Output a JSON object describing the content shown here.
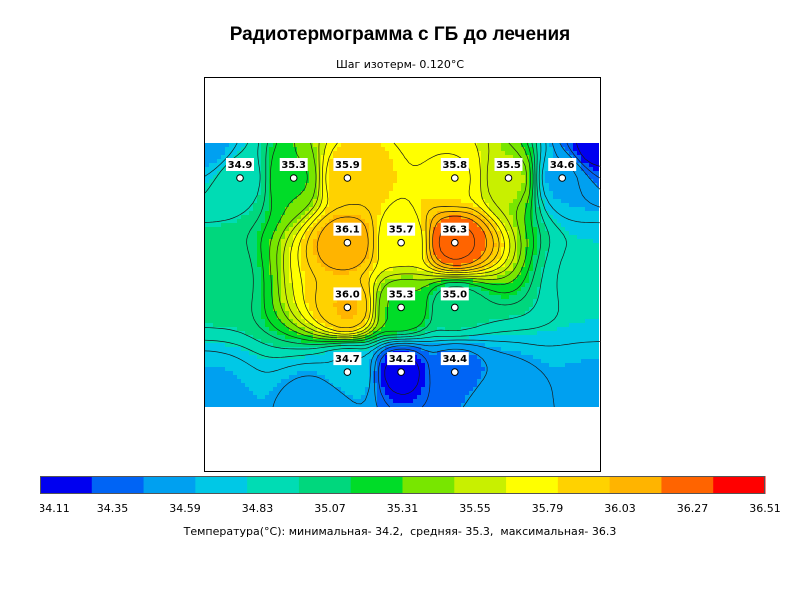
{
  "title": "Радиотермограмма с ГБ до лечения",
  "subtitle": "Шаг изотерм- 0.120°С",
  "footer": {
    "label": "Температура(°С): минимальная-",
    "min": "34.2",
    "mean_label": "средняя-",
    "mean": "35.3",
    "max_label": "максимальная-",
    "max": "36.3"
  },
  "chart_data": {
    "type": "heatmap",
    "title": "Радиотермограмма с ГБ до лечения",
    "subtitle": "Шаг изотерм- 0.120°С",
    "points": [
      {
        "col": 1,
        "row": 1,
        "value": 34.9,
        "label": "34.9"
      },
      {
        "col": 2,
        "row": 1,
        "value": 35.3,
        "label": "35.3"
      },
      {
        "col": 3,
        "row": 1,
        "value": 35.9,
        "label": "35.9"
      },
      {
        "col": 5,
        "row": 1,
        "value": 35.8,
        "label": "35.8"
      },
      {
        "col": 6,
        "row": 1,
        "value": 35.5,
        "label": "35.5"
      },
      {
        "col": 7,
        "row": 1,
        "value": 34.6,
        "label": "34.6"
      },
      {
        "col": 3,
        "row": 2,
        "value": 36.1,
        "label": "36.1"
      },
      {
        "col": 4,
        "row": 2,
        "value": 35.7,
        "label": "35.7"
      },
      {
        "col": 5,
        "row": 2,
        "value": 36.3,
        "label": "36.3"
      },
      {
        "col": 3,
        "row": 3,
        "value": 36.0,
        "label": "36.0"
      },
      {
        "col": 4,
        "row": 3,
        "value": 35.3,
        "label": "35.3"
      },
      {
        "col": 5,
        "row": 3,
        "value": 35.0,
        "label": "35.0"
      },
      {
        "col": 3,
        "row": 4,
        "value": 34.7,
        "label": "34.7"
      },
      {
        "col": 4,
        "row": 4,
        "value": 34.2,
        "label": "34.2"
      },
      {
        "col": 5,
        "row": 4,
        "value": 34.4,
        "label": "34.4"
      }
    ],
    "color_scale": {
      "ticks": [
        "34.11",
        "34.35",
        "34.59",
        "34.83",
        "35.07",
        "35.31",
        "35.55",
        "35.79",
        "36.03",
        "36.27",
        "36.51"
      ],
      "colors": [
        "#0000f0",
        "#0064f5",
        "#00a0f0",
        "#00c8e6",
        "#00dcb4",
        "#00d77d",
        "#00dc28",
        "#78e600",
        "#c8f000",
        "#ffff00",
        "#ffd200",
        "#ffb400",
        "#ff6400",
        "#ff0000"
      ]
    }
  }
}
